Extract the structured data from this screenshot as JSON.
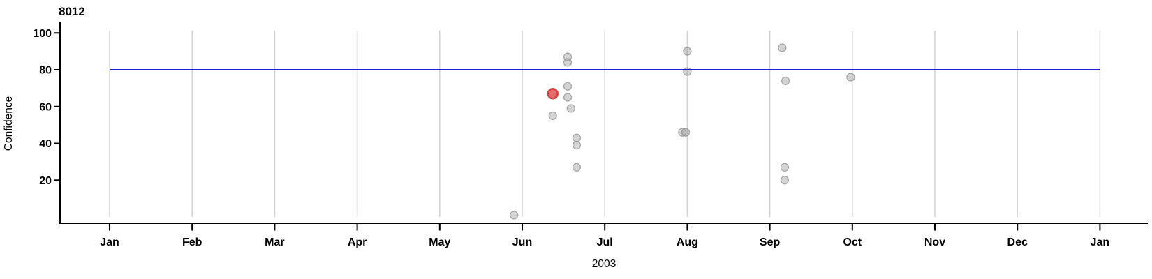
{
  "chart_data": {
    "type": "scatter",
    "title": "8012",
    "ylabel": "Confidence",
    "xlabel": "2003",
    "x_tick_labels": [
      "Jan",
      "Feb",
      "Mar",
      "Apr",
      "May",
      "Jun",
      "Jul",
      "Aug",
      "Sep",
      "Oct",
      "Nov",
      "Dec",
      "Jan"
    ],
    "y_ticks": [
      20,
      40,
      60,
      80,
      100
    ],
    "xlim_months": [
      0,
      12
    ],
    "ylim": [
      0,
      105
    ],
    "grid": "vertical-monthly-gridlines",
    "legend_position": "none",
    "reference_line": {
      "y": 80,
      "color": "#0000cc"
    },
    "points": [
      {
        "month": 4.9,
        "confidence": 1,
        "highlighted": false
      },
      {
        "month": 5.37,
        "confidence": 67,
        "highlighted": true
      },
      {
        "month": 5.37,
        "confidence": 55,
        "highlighted": false
      },
      {
        "month": 5.55,
        "confidence": 87,
        "highlighted": false
      },
      {
        "month": 5.55,
        "confidence": 84,
        "highlighted": false
      },
      {
        "month": 5.55,
        "confidence": 71,
        "highlighted": false
      },
      {
        "month": 5.55,
        "confidence": 65,
        "highlighted": false
      },
      {
        "month": 5.59,
        "confidence": 59,
        "highlighted": false
      },
      {
        "month": 5.66,
        "confidence": 43,
        "highlighted": false
      },
      {
        "month": 5.66,
        "confidence": 39,
        "highlighted": false
      },
      {
        "month": 5.66,
        "confidence": 27,
        "highlighted": false
      },
      {
        "month": 6.94,
        "confidence": 46,
        "highlighted": false
      },
      {
        "month": 6.98,
        "confidence": 46,
        "highlighted": false
      },
      {
        "month": 7.0,
        "confidence": 90,
        "highlighted": false
      },
      {
        "month": 7.0,
        "confidence": 79,
        "highlighted": false
      },
      {
        "month": 8.15,
        "confidence": 92,
        "highlighted": false
      },
      {
        "month": 8.18,
        "confidence": 27,
        "highlighted": false
      },
      {
        "month": 8.18,
        "confidence": 20,
        "highlighted": false
      },
      {
        "month": 8.19,
        "confidence": 74,
        "highlighted": false
      },
      {
        "month": 8.98,
        "confidence": 76,
        "highlighted": false
      }
    ],
    "colors": {
      "background": "#ffffff",
      "axis": "#000000",
      "gridline": "#d2d2d2",
      "point_fill": "#999999",
      "point_stroke": "#7d7d7d",
      "highlight_fill": "#dc3434",
      "highlight_stroke": "#d83030",
      "reference_line": "#0000cc"
    }
  }
}
